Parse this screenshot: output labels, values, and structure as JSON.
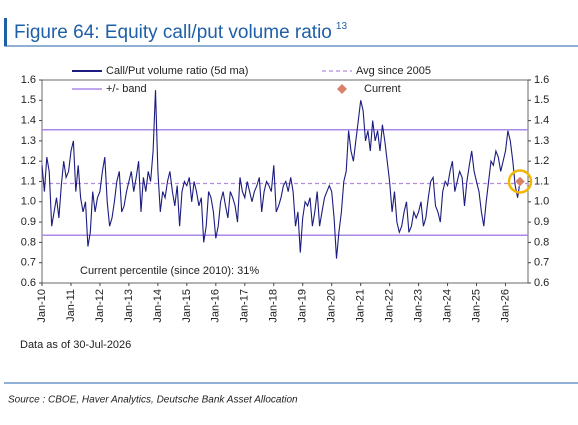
{
  "chart_data": {
    "type": "line",
    "title": "Figure 64: Equity call/put volume ratio",
    "title_note": "13",
    "annotation": "Current percentile (since 2010): 31%",
    "note": "Data as of 30-Jul-2026",
    "source": "Source : CBOE, Haver Analytics, Deutsche Bank Asset Allocation",
    "x": [
      "Jan-10",
      "Feb-10",
      "Mar-10",
      "Apr-10",
      "May-10",
      "Jun-10",
      "Jul-10",
      "Aug-10",
      "Sep-10",
      "Oct-10",
      "Nov-10",
      "Dec-10",
      "Jan-11",
      "Feb-11",
      "Mar-11",
      "Apr-11",
      "May-11",
      "Jun-11",
      "Jul-11",
      "Aug-11",
      "Sep-11",
      "Oct-11",
      "Nov-11",
      "Dec-11",
      "Jan-12",
      "Feb-12",
      "Mar-12",
      "Apr-12",
      "May-12",
      "Jun-12",
      "Jul-12",
      "Aug-12",
      "Sep-12",
      "Oct-12",
      "Nov-12",
      "Dec-12",
      "Jan-13",
      "Feb-13",
      "Mar-13",
      "Apr-13",
      "May-13",
      "Jun-13",
      "Jul-13",
      "Aug-13",
      "Sep-13",
      "Oct-13",
      "Nov-13",
      "Dec-13",
      "Jan-14",
      "Feb-14",
      "Mar-14",
      "Apr-14",
      "May-14",
      "Jun-14",
      "Jul-14",
      "Aug-14",
      "Sep-14",
      "Oct-14",
      "Nov-14",
      "Dec-14",
      "Jan-15",
      "Feb-15",
      "Mar-15",
      "Apr-15",
      "May-15",
      "Jun-15",
      "Jul-15",
      "Aug-15",
      "Sep-15",
      "Oct-15",
      "Nov-15",
      "Dec-15",
      "Jan-16",
      "Feb-16",
      "Mar-16",
      "Apr-16",
      "May-16",
      "Jun-16",
      "Jul-16",
      "Aug-16",
      "Sep-16",
      "Oct-16",
      "Nov-16",
      "Dec-16",
      "Jan-17",
      "Feb-17",
      "Mar-17",
      "Apr-17",
      "May-17",
      "Jun-17",
      "Jul-17",
      "Aug-17",
      "Sep-17",
      "Oct-17",
      "Nov-17",
      "Dec-17",
      "Jan-18",
      "Feb-18",
      "Mar-18",
      "Apr-18",
      "May-18",
      "Jun-18",
      "Jul-18",
      "Aug-18",
      "Sep-18",
      "Oct-18",
      "Nov-18",
      "Dec-18",
      "Jan-19",
      "Feb-19",
      "Mar-19",
      "Apr-19",
      "May-19",
      "Jun-19",
      "Jul-19",
      "Aug-19",
      "Sep-19",
      "Oct-19",
      "Nov-19",
      "Dec-19",
      "Jan-20",
      "Feb-20",
      "Mar-20",
      "Apr-20",
      "May-20",
      "Jun-20",
      "Jul-20",
      "Aug-20",
      "Sep-20",
      "Oct-20",
      "Nov-20",
      "Dec-20",
      "Jan-21",
      "Feb-21",
      "Mar-21",
      "Apr-21",
      "May-21",
      "Jun-21",
      "Jul-21",
      "Aug-21",
      "Sep-21",
      "Oct-21",
      "Nov-21",
      "Dec-21",
      "Jan-22",
      "Feb-22",
      "Mar-22",
      "Apr-22",
      "May-22",
      "Jun-22",
      "Jul-22",
      "Aug-22",
      "Sep-22",
      "Oct-22",
      "Nov-22",
      "Dec-22",
      "Jan-23",
      "Feb-23",
      "Mar-23",
      "Apr-23",
      "May-23",
      "Jun-23",
      "Jul-23",
      "Aug-23",
      "Sep-23",
      "Oct-23",
      "Nov-23",
      "Dec-23",
      "Jan-24",
      "Feb-24",
      "Mar-24",
      "Apr-24",
      "May-24",
      "Jun-24",
      "Jul-24",
      "Aug-24",
      "Sep-24",
      "Oct-24",
      "Nov-24",
      "Dec-24",
      "Jan-25",
      "Feb-25",
      "Mar-25",
      "Apr-25",
      "May-25",
      "Jun-25",
      "Jul-25",
      "Aug-25",
      "Sep-25",
      "Oct-25",
      "Nov-25",
      "Dec-25",
      "Jan-26",
      "Feb-26",
      "Mar-26",
      "Apr-26",
      "May-26",
      "Jun-26",
      "Jul-26"
    ],
    "xticks": [
      "Jan-10",
      "Jan-11",
      "Jan-12",
      "Jan-13",
      "Jan-14",
      "Jan-15",
      "Jan-16",
      "Jan-17",
      "Jan-18",
      "Jan-19",
      "Jan-20",
      "Jan-21",
      "Jan-22",
      "Jan-23",
      "Jan-24",
      "Jan-25",
      "Jan-26"
    ],
    "series": [
      {
        "name": "Call/Put volume ratio (5d ma)",
        "color": "#1c1c80",
        "values": [
          1.18,
          1.05,
          1.22,
          1.15,
          0.88,
          0.95,
          1.02,
          0.92,
          1.08,
          1.2,
          1.12,
          1.15,
          1.25,
          1.3,
          1.05,
          1.18,
          1.02,
          0.95,
          1.0,
          0.78,
          0.85,
          1.05,
          0.95,
          1.02,
          1.05,
          1.15,
          1.22,
          1.0,
          0.88,
          0.92,
          1.0,
          1.1,
          1.15,
          0.95,
          0.98,
          1.05,
          1.1,
          1.15,
          1.05,
          1.12,
          1.2,
          0.95,
          1.12,
          1.05,
          1.15,
          1.1,
          1.25,
          1.55,
          1.15,
          0.95,
          1.05,
          1.02,
          1.1,
          1.15,
          1.05,
          0.98,
          1.08,
          0.88,
          1.05,
          1.1,
          1.08,
          1.12,
          1.0,
          1.1,
          1.05,
          0.98,
          1.02,
          0.8,
          0.88,
          1.05,
          1.02,
          0.95,
          0.82,
          0.88,
          1.0,
          1.05,
          0.98,
          0.92,
          1.05,
          1.02,
          0.98,
          0.9,
          1.12,
          1.05,
          1.02,
          1.1,
          1.05,
          1.0,
          1.05,
          1.08,
          1.12,
          0.95,
          1.05,
          1.1,
          1.08,
          1.05,
          1.18,
          0.95,
          0.98,
          1.02,
          1.08,
          1.1,
          1.05,
          1.12,
          1.05,
          0.88,
          0.95,
          0.75,
          0.92,
          1.0,
          0.98,
          1.02,
          0.88,
          0.95,
          1.05,
          0.88,
          0.95,
          1.02,
          1.05,
          1.08,
          1.05,
          0.92,
          0.72,
          0.85,
          0.95,
          1.1,
          1.15,
          1.35,
          1.25,
          1.2,
          1.3,
          1.4,
          1.5,
          1.45,
          1.3,
          1.35,
          1.25,
          1.4,
          1.3,
          1.35,
          1.25,
          1.38,
          1.3,
          1.2,
          1.1,
          0.95,
          1.05,
          0.9,
          0.85,
          0.88,
          0.95,
          1.0,
          0.85,
          0.88,
          0.95,
          0.92,
          0.95,
          1.0,
          0.88,
          0.92,
          1.02,
          1.1,
          1.12,
          0.98,
          0.95,
          0.9,
          1.05,
          1.1,
          1.08,
          1.15,
          1.2,
          1.05,
          1.1,
          1.15,
          1.12,
          0.98,
          1.1,
          1.18,
          1.25,
          1.15,
          1.1,
          1.05,
          0.95,
          0.88,
          1.0,
          1.1,
          1.2,
          1.18,
          1.25,
          1.22,
          1.15,
          1.2,
          1.25,
          1.35,
          1.3,
          1.2,
          1.08,
          1.02,
          1.1
        ]
      }
    ],
    "average": {
      "name": "Avg since 2005",
      "color": "#b58be0",
      "value": 1.09
    },
    "band": {
      "name": "+/- band",
      "color": "#a98ae8",
      "values": [
        0.835,
        1.355
      ]
    },
    "current": {
      "name": "Current",
      "color": "#d9826a",
      "x": "Jul-26",
      "value": 1.1
    },
    "ylim": [
      0.6,
      1.6
    ],
    "yticks": [
      0.6,
      0.7,
      0.8,
      0.9,
      {
        "value": 1,
        "label": "1.0"
      },
      1.1,
      1.2,
      1.3,
      1.4,
      1.5,
      1.6
    ],
    "y2lim": [
      0.6,
      1.6
    ],
    "y2ticks": [
      0.6,
      0.7,
      0.8,
      0.9,
      {
        "value": 1,
        "label": "1.0"
      },
      1.1,
      1.2,
      1.3,
      1.4,
      1.5,
      1.6
    ]
  }
}
